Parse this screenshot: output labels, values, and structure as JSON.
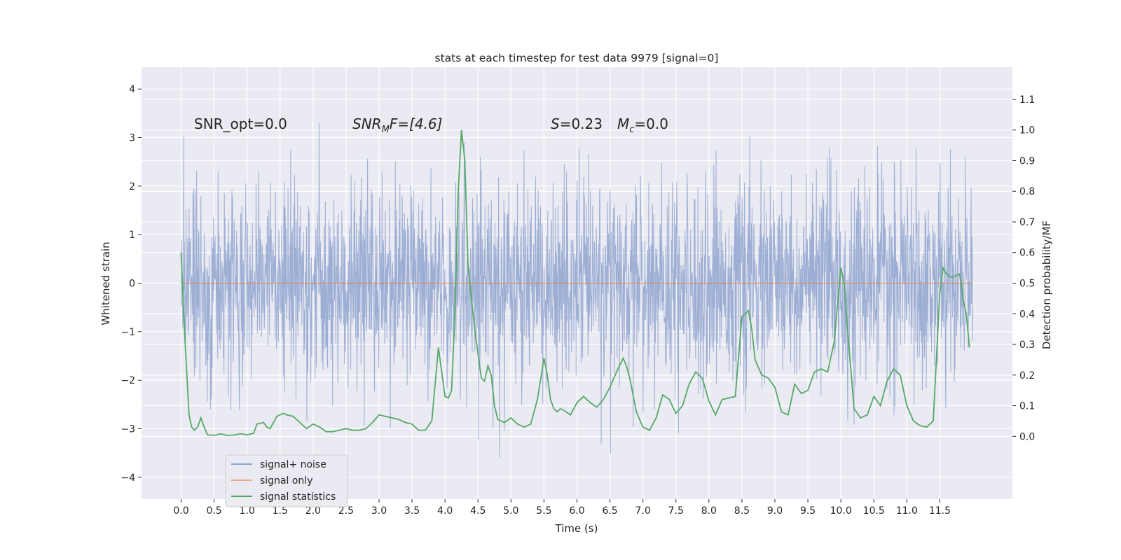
{
  "chart_data": {
    "type": "line",
    "title": "stats at each timestep for test data 9979 [signal=0]",
    "xlabel": "Time (s)",
    "ylabel": "Whitened strain",
    "ylabel_right": "Detection probability/MF",
    "xlim": [
      -0.6,
      12.6
    ],
    "ylim": [
      -4.45,
      4.45
    ],
    "ylim_right": [
      -0.205,
      1.205
    ],
    "x_ticks": [
      0.0,
      0.5,
      1.0,
      1.5,
      2.0,
      2.5,
      3.0,
      3.5,
      4.0,
      4.5,
      5.0,
      5.5,
      6.0,
      6.5,
      7.0,
      7.5,
      8.0,
      8.5,
      9.0,
      9.5,
      10.0,
      10.5,
      11.0,
      11.5
    ],
    "x_tick_labels": [
      "0.0",
      "0.5",
      "1.0",
      "1.5",
      "2.0",
      "2.5",
      "3.0",
      "3.5",
      "4.0",
      "4.5",
      "5.0",
      "5.5",
      "6.0",
      "6.5",
      "7.0",
      "7.5",
      "8.0",
      "8.5",
      "9.0",
      "9.5",
      "10.0",
      "10.5",
      "11.0",
      "11.5"
    ],
    "y_ticks": [
      -4,
      -3,
      -2,
      -1,
      0,
      1,
      2,
      3,
      4
    ],
    "y_tick_labels": [
      "−4",
      "−3",
      "−2",
      "−1",
      "0",
      "1",
      "2",
      "3",
      "4"
    ],
    "y_right_ticks": [
      0.0,
      0.1,
      0.2,
      0.3,
      0.4,
      0.5,
      0.6,
      0.7,
      0.8,
      0.9,
      1.0,
      1.1
    ],
    "y_right_tick_labels": [
      "0.0",
      "0.1",
      "0.2",
      "0.3",
      "0.4",
      "0.5",
      "0.6",
      "0.7",
      "0.8",
      "0.9",
      "1.0",
      "1.1"
    ],
    "grid": true,
    "legend_position": "lower-left",
    "annotations": {
      "snr_opt": "SNR_opt=0.0",
      "snr_mf_label": "SNR",
      "snr_mf_sub": "M",
      "snr_mf_rest": "F=[4.6]",
      "s_label": "S",
      "s_value": "=0.23",
      "mc_label": "M",
      "mc_sub": "c",
      "mc_value": "=0.0"
    },
    "series": [
      {
        "name": "signal+ noise",
        "color": "#8fa3cf",
        "axis": "left",
        "x_range": [
          0.0,
          12.0
        ],
        "sample_count": 2400,
        "noise_sigma": 1.0,
        "note_shown": "dense noise band spanning about -4 to 4"
      },
      {
        "name": "signal only",
        "color": "#dd8452",
        "axis": "left",
        "x": [
          0.0,
          12.0
        ],
        "y": [
          0.0,
          0.0
        ]
      },
      {
        "name": "signal statistics",
        "color": "#55a868",
        "axis": "right",
        "x": [
          0.0,
          0.05,
          0.12,
          0.16,
          0.2,
          0.25,
          0.3,
          0.35,
          0.4,
          0.5,
          0.6,
          0.7,
          0.8,
          0.9,
          1.0,
          1.1,
          1.15,
          1.25,
          1.3,
          1.35,
          1.45,
          1.55,
          1.6,
          1.7,
          1.8,
          1.9,
          2.0,
          2.1,
          2.2,
          2.3,
          2.4,
          2.5,
          2.6,
          2.7,
          2.8,
          2.9,
          3.0,
          3.1,
          3.2,
          3.3,
          3.4,
          3.5,
          3.6,
          3.7,
          3.8,
          3.9,
          4.0,
          4.05,
          4.1,
          4.15,
          4.2,
          4.25,
          4.3,
          4.35,
          4.45,
          4.55,
          4.6,
          4.65,
          4.7,
          4.75,
          4.8,
          4.9,
          5.0,
          5.1,
          5.2,
          5.3,
          5.4,
          5.5,
          5.55,
          5.6,
          5.65,
          5.7,
          5.75,
          5.8,
          5.9,
          6.0,
          6.1,
          6.2,
          6.3,
          6.4,
          6.5,
          6.6,
          6.7,
          6.75,
          6.8,
          6.9,
          7.0,
          7.1,
          7.2,
          7.3,
          7.4,
          7.5,
          7.6,
          7.7,
          7.8,
          7.9,
          8.0,
          8.1,
          8.2,
          8.3,
          8.4,
          8.5,
          8.55,
          8.6,
          8.65,
          8.7,
          8.8,
          8.9,
          9.0,
          9.1,
          9.2,
          9.3,
          9.4,
          9.5,
          9.6,
          9.7,
          9.8,
          9.9,
          10.0,
          10.05,
          10.1,
          10.2,
          10.3,
          10.4,
          10.5,
          10.6,
          10.7,
          10.8,
          10.9,
          11.0,
          11.1,
          11.2,
          11.3,
          11.4,
          11.5,
          11.55,
          11.6,
          11.65,
          11.7,
          11.8,
          11.85,
          11.9,
          11.95
        ],
        "y": [
          0.6,
          0.35,
          0.07,
          0.03,
          0.02,
          0.03,
          0.06,
          0.03,
          0.005,
          0.003,
          0.008,
          0.003,
          0.004,
          0.008,
          0.005,
          0.01,
          0.04,
          0.045,
          0.03,
          0.025,
          0.065,
          0.075,
          0.07,
          0.065,
          0.045,
          0.025,
          0.04,
          0.03,
          0.015,
          0.015,
          0.02,
          0.025,
          0.02,
          0.02,
          0.025,
          0.045,
          0.07,
          0.065,
          0.06,
          0.055,
          0.045,
          0.04,
          0.02,
          0.02,
          0.05,
          0.29,
          0.13,
          0.125,
          0.15,
          0.4,
          0.8,
          1.0,
          0.9,
          0.55,
          0.35,
          0.19,
          0.18,
          0.23,
          0.2,
          0.1,
          0.055,
          0.045,
          0.06,
          0.04,
          0.03,
          0.04,
          0.12,
          0.255,
          0.2,
          0.12,
          0.09,
          0.08,
          0.09,
          0.085,
          0.07,
          0.11,
          0.13,
          0.11,
          0.095,
          0.12,
          0.16,
          0.21,
          0.255,
          0.23,
          0.19,
          0.08,
          0.03,
          0.02,
          0.06,
          0.135,
          0.12,
          0.075,
          0.1,
          0.17,
          0.21,
          0.19,
          0.115,
          0.07,
          0.12,
          0.125,
          0.13,
          0.39,
          0.4,
          0.41,
          0.35,
          0.25,
          0.2,
          0.19,
          0.16,
          0.08,
          0.07,
          0.17,
          0.14,
          0.15,
          0.21,
          0.22,
          0.21,
          0.31,
          0.55,
          0.5,
          0.35,
          0.09,
          0.06,
          0.07,
          0.13,
          0.1,
          0.18,
          0.22,
          0.2,
          0.1,
          0.05,
          0.035,
          0.03,
          0.05,
          0.47,
          0.55,
          0.53,
          0.52,
          0.52,
          0.53,
          0.45,
          0.4,
          0.29
        ]
      }
    ]
  }
}
